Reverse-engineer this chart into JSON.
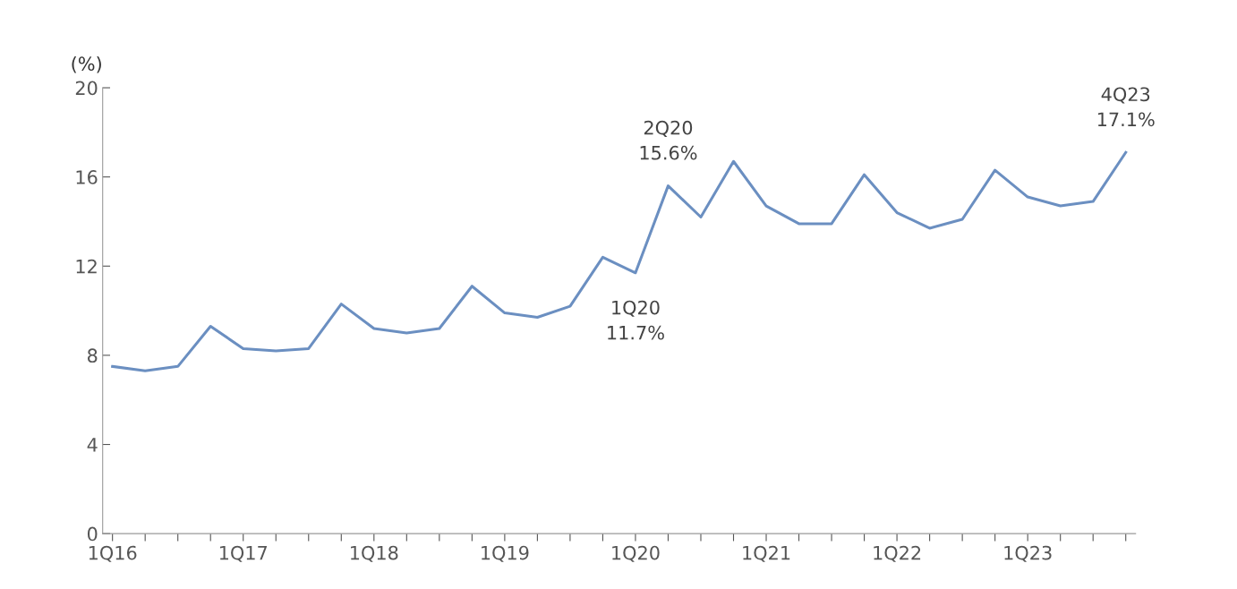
{
  "chart_data": {
    "type": "line",
    "ylabel": "(%)",
    "categories": [
      "1Q16",
      null,
      null,
      null,
      "1Q17",
      null,
      null,
      null,
      "1Q18",
      null,
      null,
      null,
      "1Q19",
      null,
      null,
      null,
      "1Q20",
      null,
      null,
      null,
      "1Q21",
      null,
      null,
      null,
      "1Q22",
      null,
      null,
      null,
      "1Q23",
      null,
      null,
      null
    ],
    "series": [
      {
        "color": "#6b8fc1",
        "values": [
          7.5,
          7.3,
          7.5,
          9.3,
          8.3,
          8.2,
          8.3,
          10.3,
          9.2,
          9.0,
          9.2,
          11.1,
          9.9,
          9.7,
          10.2,
          12.4,
          11.7,
          15.6,
          14.2,
          16.7,
          14.7,
          13.9,
          13.9,
          16.1,
          14.4,
          13.7,
          14.1,
          16.3,
          15.1,
          14.7,
          14.9,
          17.1
        ]
      }
    ],
    "ylim": [
      0,
      20
    ],
    "yticks": [
      0,
      4,
      8,
      12,
      16,
      20
    ],
    "grid": false,
    "legend": false,
    "marker": "none",
    "line_style": "solid",
    "annotations": [
      {
        "text": "2Q20\n15.6%",
        "y": 15.6
      },
      {
        "text": "1Q20\n11.7%",
        "y": 11.7
      },
      {
        "text": "4Q23\n17.1%",
        "y": 17.1
      }
    ]
  }
}
